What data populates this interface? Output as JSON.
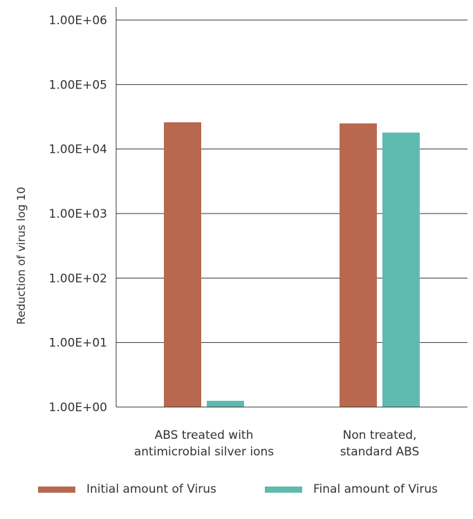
{
  "chart_data": {
    "type": "bar",
    "scale": "log",
    "ylabel": "Reduction of virus log 10",
    "ylim": [
      1,
      1000000
    ],
    "yticks": [
      "1.00E+00",
      "1.00E+01",
      "1.00E+02",
      "1.00E+03",
      "1.00E+04",
      "1.00E+05",
      "1.00E+06"
    ],
    "grid": true,
    "legend_position": "bottom",
    "categories": [
      [
        "ABS treated with",
        "antimicrobial silver ions"
      ],
      [
        "Non treated,",
        "standard ABS"
      ]
    ],
    "series": [
      {
        "name": "Initial amount of Virus",
        "color": "#b96850",
        "values": [
          26000,
          25000
        ]
      },
      {
        "name": "Final amount of Virus",
        "color": "#5fbab0",
        "values": [
          1.25,
          18000
        ]
      }
    ]
  },
  "colors": {
    "axis": "#333333",
    "grid": "#333333",
    "text": "#333333"
  }
}
